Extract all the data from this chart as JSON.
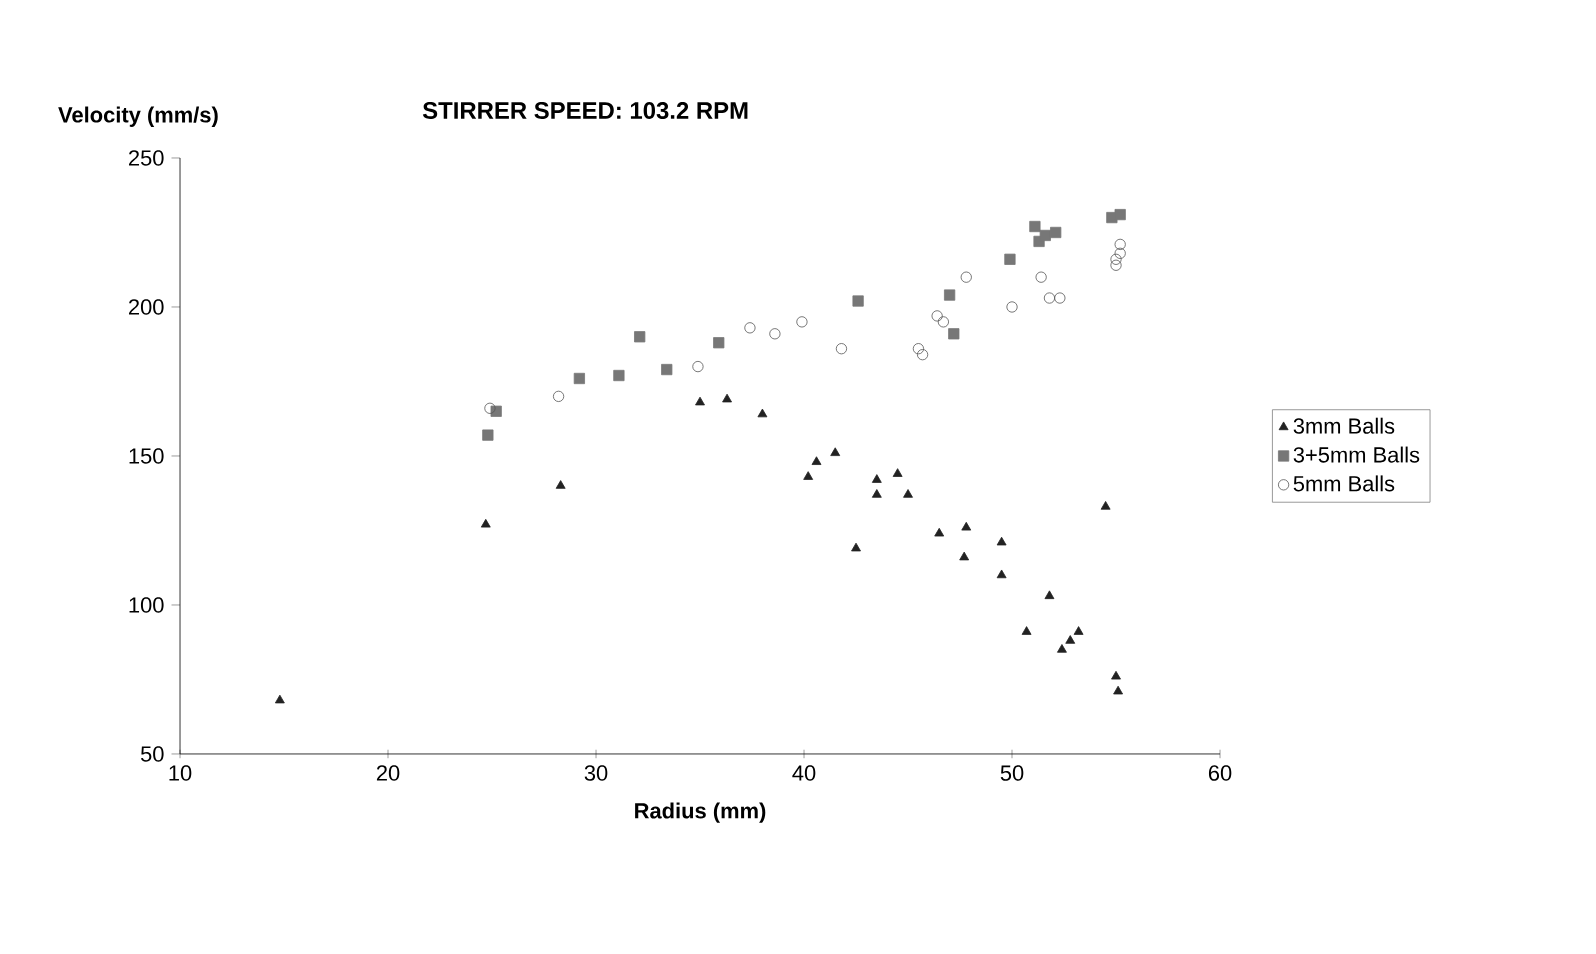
{
  "chart_data": {
    "type": "scatter",
    "title": "STIRRER SPEED: 103.2 RPM",
    "xlabel": "Radius (mm)",
    "ylabel": "Velocity (mm/s)",
    "xlim": [
      10,
      60
    ],
    "xticks": [
      10,
      20,
      30,
      40,
      50,
      60
    ],
    "ylim": [
      50,
      250
    ],
    "yticks": [
      50,
      100,
      150,
      200,
      250
    ],
    "grid": false,
    "legend": "right",
    "series": [
      {
        "name": "3mm Balls",
        "color": "#222222",
        "marker": "triangle",
        "x": [
          14.8,
          24.7,
          28.3,
          35,
          36.3,
          38,
          40.2,
          40.6,
          41.5,
          42.5,
          43.5,
          43.5,
          44.5,
          45,
          46.5,
          47.7,
          47.8,
          49.5,
          49.5,
          50.7,
          51.8,
          52.4,
          52.8,
          53.2,
          54.5,
          55,
          55.1
        ],
        "values": [
          68,
          127,
          140,
          168,
          169,
          164,
          143,
          148,
          151,
          119,
          137,
          142,
          144,
          137,
          124,
          116,
          126,
          121,
          110,
          91,
          103,
          85,
          88,
          91,
          133,
          76,
          71
        ]
      },
      {
        "name": "3+5mm Balls",
        "color": "#777777",
        "marker": "square",
        "x": [
          24.8,
          25.2,
          29.2,
          31.1,
          32.1,
          33.4,
          35.9,
          42.6,
          47,
          47.2,
          49.9,
          51.1,
          51.3,
          51.6,
          52.1,
          54.8,
          55.2
        ],
        "values": [
          157,
          165,
          176,
          177,
          190,
          179,
          188,
          202,
          204,
          191,
          216,
          227,
          222,
          224,
          225,
          230,
          231
        ]
      },
      {
        "name": "5mm Balls",
        "color": "#555555",
        "marker": "circle",
        "x": [
          24.9,
          28.2,
          34.9,
          37.4,
          38.6,
          39.9,
          41.8,
          45.5,
          45.7,
          46.4,
          46.7,
          47.8,
          50,
          51.4,
          51.8,
          52.3,
          55,
          55,
          55.2,
          55.2
        ],
        "values": [
          166,
          170,
          180,
          193,
          191,
          195,
          186,
          186,
          184,
          197,
          195,
          210,
          200,
          210,
          203,
          203,
          214,
          216,
          218,
          221
        ]
      }
    ]
  }
}
